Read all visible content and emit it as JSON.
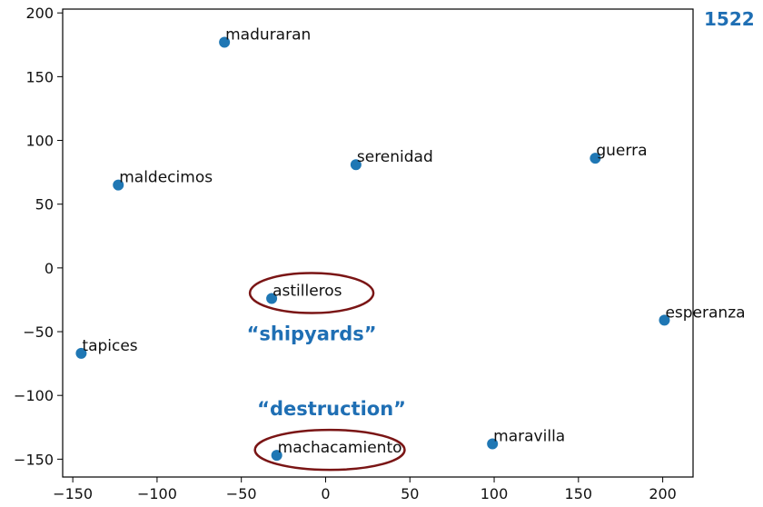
{
  "corner_label": "1522",
  "chart_data": {
    "type": "scatter",
    "points": [
      {
        "label": "maduraran",
        "x": -60,
        "y": 177
      },
      {
        "label": "serenidad",
        "x": 18,
        "y": 81
      },
      {
        "label": "guerra",
        "x": 160,
        "y": 86
      },
      {
        "label": "maldecimos",
        "x": -123,
        "y": 65
      },
      {
        "label": "astilleros",
        "x": -32,
        "y": -24
      },
      {
        "label": "esperanza",
        "x": 201,
        "y": -41
      },
      {
        "label": "tapices",
        "x": -145,
        "y": -67
      },
      {
        "label": "maravilla",
        "x": 99,
        "y": -138
      },
      {
        "label": "machacamiento",
        "x": -29,
        "y": -147
      }
    ],
    "xlim": [
      -156,
      218
    ],
    "ylim": [
      -164,
      203
    ],
    "xticks": [
      -150,
      -100,
      -50,
      0,
      50,
      100,
      150,
      200
    ],
    "yticks": [
      -150,
      -100,
      -50,
      0,
      50,
      100,
      150,
      200
    ],
    "point_color": "#1f77b4",
    "annotations": [
      {
        "text": "“shipyards”",
        "target": "astilleros"
      },
      {
        "text": "“destruction”",
        "target": "machacamiento"
      }
    ],
    "highlight_color": "#7a1515",
    "annotation_color": "#1f6fb4"
  }
}
